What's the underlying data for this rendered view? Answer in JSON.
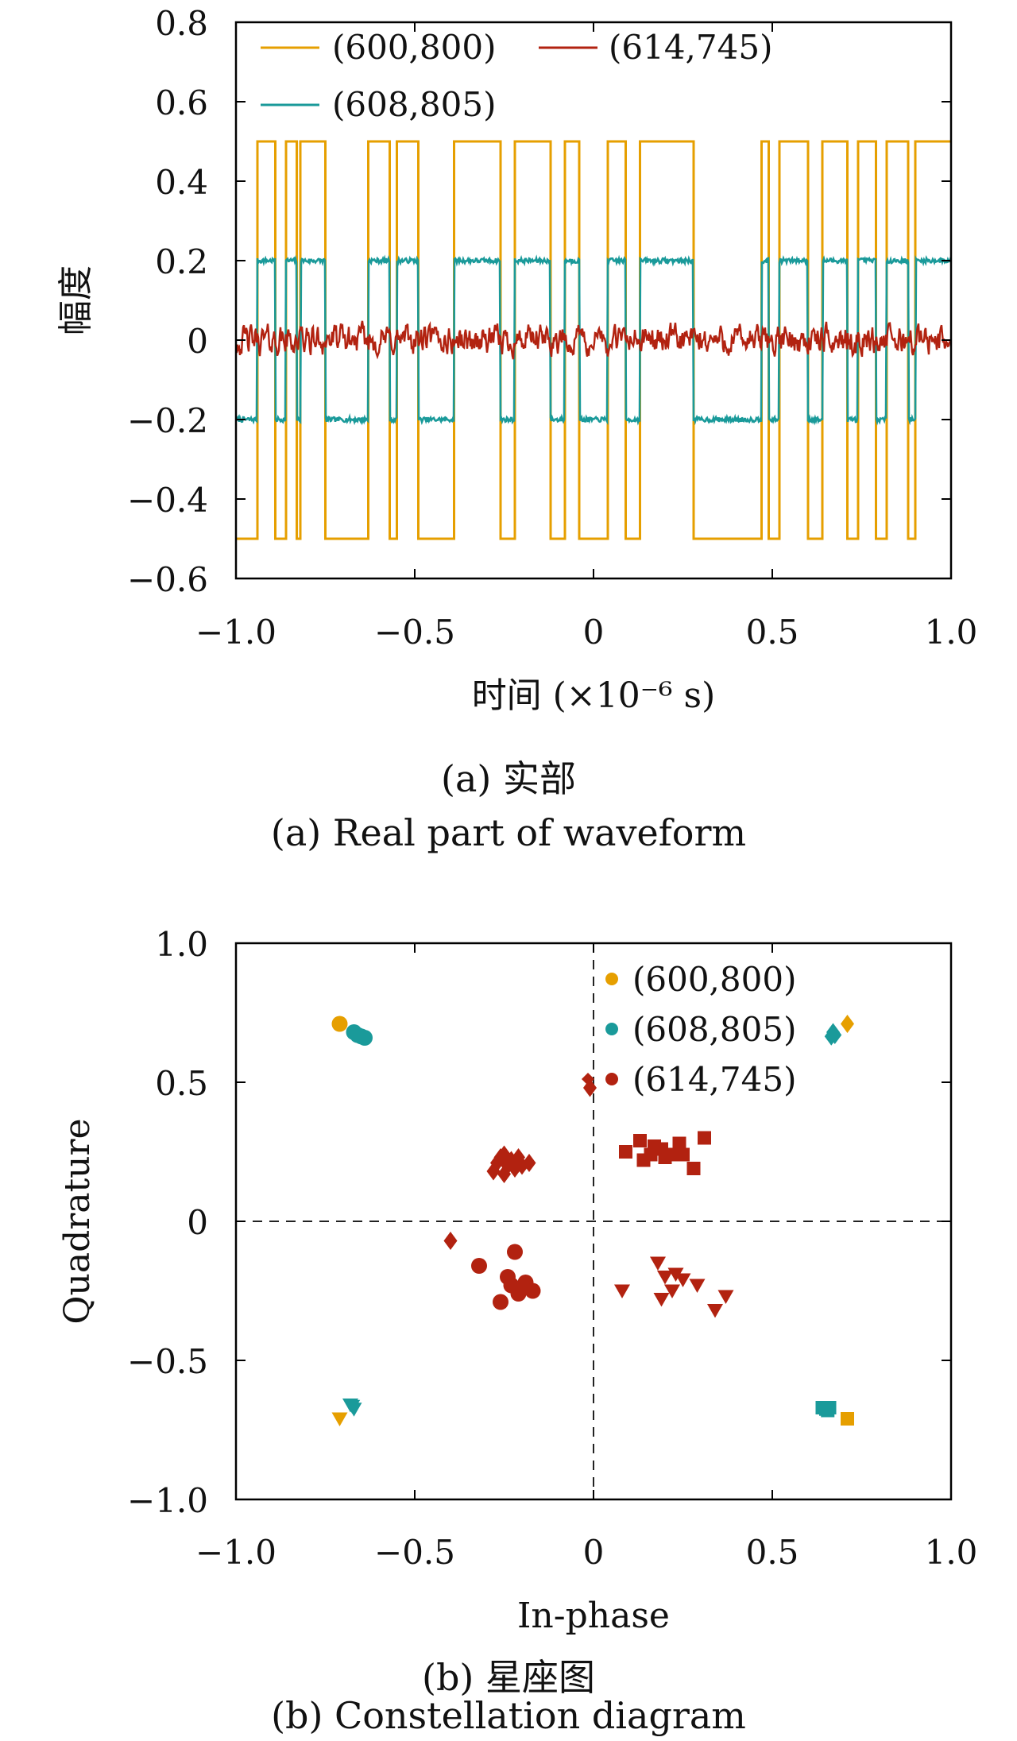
{
  "chart_data": [
    {
      "type": "line",
      "xlabel": "时间 (×10⁻⁶ s)",
      "ylabel": "幅度",
      "xlim": [
        -1.0,
        1.0
      ],
      "ylim": [
        -0.6,
        0.8
      ],
      "x_ticks": [
        "−1.0",
        "−0.5",
        "0",
        "0.5",
        "1.0"
      ],
      "y_ticks": [
        "0.8",
        "0.6",
        "0.4",
        "0.2",
        "0",
        "−0.2",
        "−0.4",
        "−0.6"
      ],
      "grid": false,
      "legend_position": "top",
      "colors": {
        "orange": "#E69F00",
        "teal": "#1A9A9A",
        "red": "#B22210"
      },
      "transitions": [
        -0.94,
        -0.89,
        -0.86,
        -0.83,
        -0.82,
        -0.75,
        -0.63,
        -0.57,
        -0.55,
        -0.49,
        -0.39,
        -0.26,
        -0.22,
        -0.12,
        -0.08,
        -0.04,
        0.04,
        0.09,
        0.13,
        0.28,
        0.47,
        0.49,
        0.52,
        0.6,
        0.64,
        0.71,
        0.74,
        0.79,
        0.82,
        0.88,
        0.9
      ],
      "series": [
        {
          "name": "(600,800)",
          "color": "#E69F00",
          "amplitude": 0.5,
          "initial_level": -1
        },
        {
          "name": "(614,745)",
          "color": "#B22210",
          "amplitude": 0.0,
          "noise_std": 0.03
        },
        {
          "name": "(608,805)",
          "color": "#1A9A9A",
          "amplitude": 0.2,
          "noise_std": 0.006,
          "initial_level": -1
        }
      ],
      "caption_cn": "(a) 实部",
      "caption_en": "(a) Real part of waveform"
    },
    {
      "type": "scatter",
      "xlabel": "In-phase",
      "ylabel": "Quadrature",
      "xlim": [
        -1.0,
        1.0
      ],
      "ylim": [
        -1.0,
        1.0
      ],
      "x_ticks": [
        "−1.0",
        "−0.5",
        "0",
        "0.5",
        "1.0"
      ],
      "y_ticks": [
        "1.0",
        "0.5",
        "0",
        "−0.5",
        "−1.0"
      ],
      "grid": false,
      "legend_position": "top-right",
      "series": [
        {
          "name": "(600,800)",
          "color": "#E69F00",
          "points": [
            {
              "x": -0.71,
              "y": 0.71,
              "marker": "circle"
            },
            {
              "x": 0.71,
              "y": 0.71,
              "marker": "diamond"
            },
            {
              "x": -0.71,
              "y": -0.71,
              "marker": "triangle"
            },
            {
              "x": 0.71,
              "y": -0.71,
              "marker": "square"
            }
          ]
        },
        {
          "name": "(608,805)",
          "color": "#1A9A9A",
          "points": [
            {
              "x": -0.67,
              "y": 0.68,
              "marker": "circle"
            },
            {
              "x": -0.66,
              "y": 0.67,
              "marker": "circle"
            },
            {
              "x": -0.65,
              "y": 0.665,
              "marker": "circle"
            },
            {
              "x": -0.64,
              "y": 0.66,
              "marker": "circle"
            },
            {
              "x": 0.67,
              "y": 0.68,
              "marker": "diamond"
            },
            {
              "x": 0.665,
              "y": 0.665,
              "marker": "diamond"
            },
            {
              "x": 0.675,
              "y": 0.67,
              "marker": "diamond"
            },
            {
              "x": -0.68,
              "y": -0.66,
              "marker": "triangle"
            },
            {
              "x": -0.675,
              "y": -0.665,
              "marker": "triangle"
            },
            {
              "x": -0.67,
              "y": -0.675,
              "marker": "triangle"
            },
            {
              "x": 0.64,
              "y": -0.67,
              "marker": "square"
            },
            {
              "x": 0.65,
              "y": -0.675,
              "marker": "square"
            },
            {
              "x": 0.66,
              "y": -0.67,
              "marker": "square"
            },
            {
              "x": 0.655,
              "y": -0.68,
              "marker": "square"
            }
          ]
        },
        {
          "name": "(614,745)",
          "color": "#B22210",
          "points": [
            {
              "x": -0.01,
              "y": 0.48,
              "marker": "diamond"
            },
            {
              "x": -0.28,
              "y": 0.18,
              "marker": "diamond"
            },
            {
              "x": -0.27,
              "y": 0.21,
              "marker": "diamond"
            },
            {
              "x": -0.26,
              "y": 0.23,
              "marker": "diamond"
            },
            {
              "x": -0.25,
              "y": 0.17,
              "marker": "diamond"
            },
            {
              "x": -0.25,
              "y": 0.24,
              "marker": "diamond"
            },
            {
              "x": -0.24,
              "y": 0.2,
              "marker": "diamond"
            },
            {
              "x": -0.23,
              "y": 0.22,
              "marker": "diamond"
            },
            {
              "x": -0.22,
              "y": 0.19,
              "marker": "diamond"
            },
            {
              "x": -0.21,
              "y": 0.23,
              "marker": "diamond"
            },
            {
              "x": -0.2,
              "y": 0.2,
              "marker": "diamond"
            },
            {
              "x": -0.18,
              "y": 0.21,
              "marker": "diamond"
            },
            {
              "x": -0.4,
              "y": -0.07,
              "marker": "diamond"
            },
            {
              "x": 0.09,
              "y": 0.25,
              "marker": "square"
            },
            {
              "x": 0.13,
              "y": 0.29,
              "marker": "square"
            },
            {
              "x": 0.14,
              "y": 0.22,
              "marker": "square"
            },
            {
              "x": 0.16,
              "y": 0.24,
              "marker": "square"
            },
            {
              "x": 0.17,
              "y": 0.27,
              "marker": "square"
            },
            {
              "x": 0.19,
              "y": 0.26,
              "marker": "square"
            },
            {
              "x": 0.2,
              "y": 0.23,
              "marker": "square"
            },
            {
              "x": 0.22,
              "y": 0.24,
              "marker": "square"
            },
            {
              "x": 0.24,
              "y": 0.28,
              "marker": "square"
            },
            {
              "x": 0.25,
              "y": 0.24,
              "marker": "square"
            },
            {
              "x": 0.28,
              "y": 0.19,
              "marker": "square"
            },
            {
              "x": 0.31,
              "y": 0.3,
              "marker": "square"
            },
            {
              "x": -0.32,
              "y": -0.16,
              "marker": "circle"
            },
            {
              "x": -0.26,
              "y": -0.29,
              "marker": "circle"
            },
            {
              "x": -0.24,
              "y": -0.2,
              "marker": "circle"
            },
            {
              "x": -0.23,
              "y": -0.23,
              "marker": "circle"
            },
            {
              "x": -0.22,
              "y": -0.11,
              "marker": "circle"
            },
            {
              "x": -0.21,
              "y": -0.26,
              "marker": "circle"
            },
            {
              "x": -0.19,
              "y": -0.22,
              "marker": "circle"
            },
            {
              "x": -0.17,
              "y": -0.25,
              "marker": "circle"
            },
            {
              "x": 0.08,
              "y": -0.25,
              "marker": "triangle"
            },
            {
              "x": 0.18,
              "y": -0.15,
              "marker": "triangle"
            },
            {
              "x": 0.19,
              "y": -0.28,
              "marker": "triangle"
            },
            {
              "x": 0.2,
              "y": -0.2,
              "marker": "triangle"
            },
            {
              "x": 0.22,
              "y": -0.25,
              "marker": "triangle"
            },
            {
              "x": 0.23,
              "y": -0.19,
              "marker": "triangle"
            },
            {
              "x": 0.25,
              "y": -0.21,
              "marker": "triangle"
            },
            {
              "x": 0.29,
              "y": -0.23,
              "marker": "triangle"
            },
            {
              "x": 0.34,
              "y": -0.32,
              "marker": "triangle"
            },
            {
              "x": 0.37,
              "y": -0.27,
              "marker": "triangle"
            }
          ]
        }
      ],
      "legend_marker": "circle",
      "caption_cn": "(b) 星座图",
      "caption_en": "(b) Constellation diagram"
    }
  ]
}
